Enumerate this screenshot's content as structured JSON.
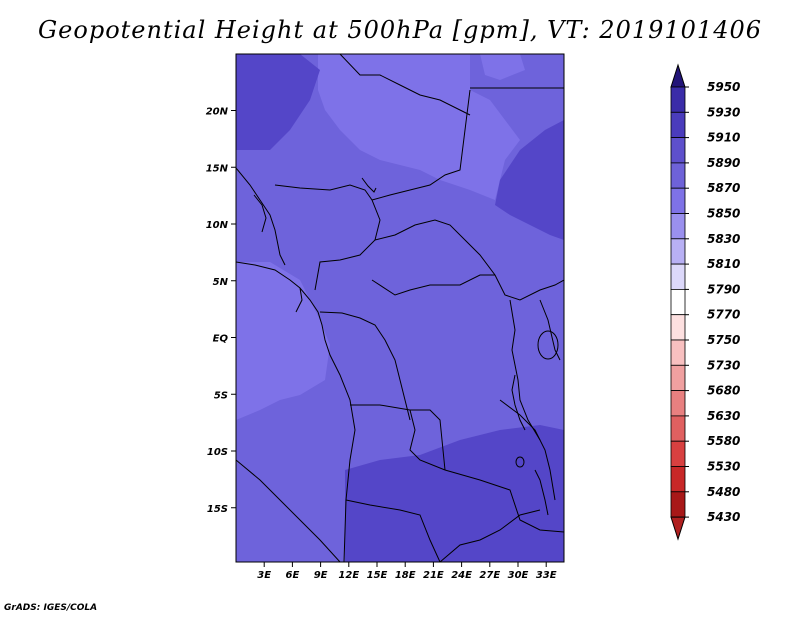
{
  "title": "Geopotential Height at 500hPa [gpm], VT: 2019101406",
  "credit": "GrADS: IGES/COLA",
  "map": {
    "lat_labels": [
      {
        "label": "20N",
        "lat": 20
      },
      {
        "label": "15N",
        "lat": 15
      },
      {
        "label": "10N",
        "lat": 10
      },
      {
        "label": "5N",
        "lat": 5
      },
      {
        "label": "EQ",
        "lat": 0
      },
      {
        "label": "5S",
        "lat": -5
      },
      {
        "label": "10S",
        "lat": -10
      },
      {
        "label": "15S",
        "lat": -15
      }
    ],
    "lon_labels": [
      {
        "label": "3E",
        "lon": 3
      },
      {
        "label": "6E",
        "lon": 6
      },
      {
        "label": "9E",
        "lon": 9
      },
      {
        "label": "12E",
        "lon": 12
      },
      {
        "label": "15E",
        "lon": 15
      },
      {
        "label": "18E",
        "lon": 18
      },
      {
        "label": "21E",
        "lon": 21
      },
      {
        "label": "24E",
        "lon": 24
      },
      {
        "label": "27E",
        "lon": 27
      },
      {
        "label": "30E",
        "lon": 30
      },
      {
        "label": "33E",
        "lon": 33
      }
    ],
    "colors": {
      "band_5850": "#6e63db",
      "band_5870": "#7e72e8",
      "band_5890": "#5446c8"
    }
  },
  "colorbar": {
    "levels": [
      "5950",
      "5930",
      "5910",
      "5890",
      "5870",
      "5850",
      "5830",
      "5810",
      "5790",
      "5770",
      "5750",
      "5730",
      "5680",
      "5630",
      "5580",
      "5530",
      "5480",
      "5430"
    ],
    "colors": [
      "#2a1a8c",
      "#3a2ca8",
      "#4a3cbc",
      "#5e50cc",
      "#6e62d8",
      "#7e72e6",
      "#9a90ee",
      "#b8b0f4",
      "#dcd8fa",
      "#ffffff",
      "#fde0e0",
      "#f8c0c0",
      "#f0a0a0",
      "#e88080",
      "#e06060",
      "#d84040",
      "#c82828",
      "#a81818"
    ],
    "top_cap_color": "#221478",
    "bottom_cap_color": "#b02020"
  }
}
